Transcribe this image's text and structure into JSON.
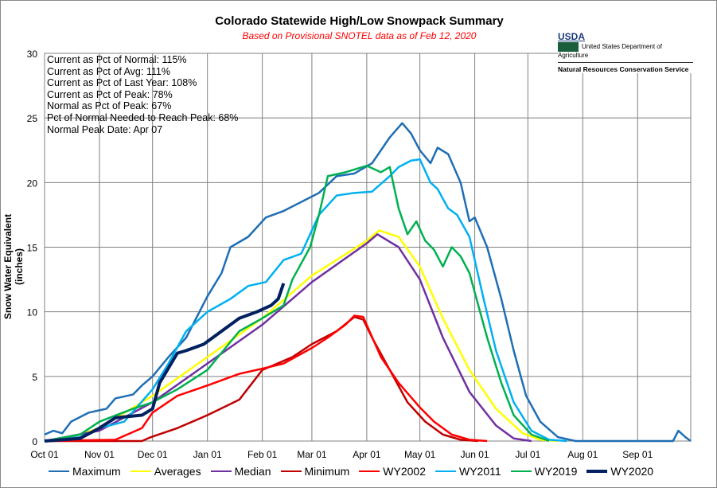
{
  "header": {
    "title": "Colorado Statewide High/Low Snowpack Summary",
    "subtitle": "Based on Provisional SNOTEL data as of Feb 12, 2020",
    "subtitle_color": "#ff0000"
  },
  "logo": {
    "mark": "USDA",
    "dept": "United States Department of Agriculture",
    "agency": "Natural Resources Conservation Service"
  },
  "stats": [
    "Current  as Pct of Normal: 115%",
    "Current  as Pct of Avg: 111%",
    "Current  as Pct of Last Year: 108%",
    "Current  as Pct of Peak: 78%",
    "Normal  as Pct of Peak: 67%",
    "Pct of Normal Needed  to Reach Peak: 68%",
    "Normal  Peak Date: Apr 07"
  ],
  "chart_data": {
    "type": "line",
    "title": "Colorado Statewide High/Low Snowpack Summary",
    "xlabel": "",
    "ylabel": "Snow Water Equivalent (inches)",
    "ylim": [
      0,
      30
    ],
    "yticks": [
      0,
      5,
      10,
      15,
      20,
      25,
      30
    ],
    "xlim_days": [
      0,
      365
    ],
    "xticks": [
      {
        "day": 0,
        "label": "Oct 01"
      },
      {
        "day": 31,
        "label": "Nov 01"
      },
      {
        "day": 61,
        "label": "Dec 01"
      },
      {
        "day": 92,
        "label": "Jan 01"
      },
      {
        "day": 123,
        "label": "Feb 01"
      },
      {
        "day": 151,
        "label": "Mar 01"
      },
      {
        "day": 182,
        "label": "Apr 01"
      },
      {
        "day": 212,
        "label": "May 01"
      },
      {
        "day": 243,
        "label": "Jun 01"
      },
      {
        "day": 273,
        "label": "Jul 01"
      },
      {
        "day": 304,
        "label": "Aug 01"
      },
      {
        "day": 335,
        "label": "Sep 01"
      }
    ],
    "grid": true,
    "legend": "bottom",
    "series": [
      {
        "name": "Maximum",
        "color": "#1f6eb5",
        "width": 2.5,
        "points": [
          [
            0,
            0.5
          ],
          [
            5,
            0.8
          ],
          [
            10,
            0.6
          ],
          [
            15,
            1.5
          ],
          [
            25,
            2.2
          ],
          [
            35,
            2.5
          ],
          [
            40,
            3.3
          ],
          [
            50,
            3.6
          ],
          [
            55,
            4.3
          ],
          [
            61,
            5
          ],
          [
            70,
            6.5
          ],
          [
            80,
            8
          ],
          [
            92,
            11.2
          ],
          [
            100,
            13
          ],
          [
            105,
            15
          ],
          [
            115,
            15.8
          ],
          [
            125,
            17.3
          ],
          [
            135,
            17.8
          ],
          [
            145,
            18.5
          ],
          [
            155,
            19.2
          ],
          [
            165,
            20.5
          ],
          [
            175,
            20.7
          ],
          [
            185,
            21.5
          ],
          [
            195,
            23.5
          ],
          [
            202,
            24.6
          ],
          [
            207,
            23.8
          ],
          [
            212,
            22.5
          ],
          [
            218,
            21.5
          ],
          [
            222,
            22.7
          ],
          [
            228,
            22.2
          ],
          [
            235,
            20
          ],
          [
            240,
            17
          ],
          [
            243,
            17.3
          ],
          [
            250,
            15
          ],
          [
            258,
            11
          ],
          [
            265,
            7
          ],
          [
            272,
            3.5
          ],
          [
            280,
            1.5
          ],
          [
            290,
            0.3
          ],
          [
            300,
            0
          ],
          [
            355,
            0
          ],
          [
            358,
            0.8
          ],
          [
            362,
            0.3
          ],
          [
            365,
            0
          ]
        ]
      },
      {
        "name": "Averages",
        "color": "#ffff00",
        "width": 2.5,
        "points": [
          [
            0,
            0
          ],
          [
            15,
            0.3
          ],
          [
            31,
            1
          ],
          [
            61,
            3.5
          ],
          [
            92,
            6.5
          ],
          [
            123,
            9.5
          ],
          [
            151,
            12.8
          ],
          [
            182,
            15.5
          ],
          [
            189,
            16.3
          ],
          [
            200,
            15.8
          ],
          [
            212,
            13.5
          ],
          [
            225,
            9.5
          ],
          [
            240,
            5.5
          ],
          [
            255,
            2.5
          ],
          [
            270,
            0.6
          ],
          [
            280,
            0.1
          ],
          [
            290,
            0
          ]
        ]
      },
      {
        "name": "Median",
        "color": "#7030a0",
        "width": 2.5,
        "points": [
          [
            0,
            0
          ],
          [
            31,
            0.8
          ],
          [
            61,
            3
          ],
          [
            92,
            6
          ],
          [
            123,
            9
          ],
          [
            151,
            12.3
          ],
          [
            182,
            15.3
          ],
          [
            188,
            16
          ],
          [
            200,
            15
          ],
          [
            212,
            12.5
          ],
          [
            225,
            8
          ],
          [
            240,
            3.8
          ],
          [
            255,
            1.2
          ],
          [
            265,
            0.2
          ],
          [
            275,
            0
          ]
        ]
      },
      {
        "name": "Minimum",
        "color": "#c00000",
        "width": 2.5,
        "points": [
          [
            0,
            0
          ],
          [
            55,
            0
          ],
          [
            60,
            0.3
          ],
          [
            75,
            1
          ],
          [
            92,
            2
          ],
          [
            110,
            3.2
          ],
          [
            123,
            5.5
          ],
          [
            140,
            6.5
          ],
          [
            151,
            7.5
          ],
          [
            165,
            8.5
          ],
          [
            175,
            9.6
          ],
          [
            180,
            9.4
          ],
          [
            185,
            8
          ],
          [
            195,
            5.5
          ],
          [
            205,
            3
          ],
          [
            215,
            1.5
          ],
          [
            225,
            0.5
          ],
          [
            235,
            0.1
          ],
          [
            245,
            0
          ]
        ]
      },
      {
        "name": "WY2002",
        "color": "#ff0000",
        "width": 2.5,
        "points": [
          [
            0,
            0
          ],
          [
            40,
            0.1
          ],
          [
            55,
            1
          ],
          [
            61,
            2.2
          ],
          [
            75,
            3.5
          ],
          [
            92,
            4.3
          ],
          [
            110,
            5.2
          ],
          [
            123,
            5.6
          ],
          [
            135,
            6
          ],
          [
            151,
            7.2
          ],
          [
            160,
            8
          ],
          [
            170,
            9
          ],
          [
            175,
            9.7
          ],
          [
            180,
            9.6
          ],
          [
            190,
            6.5
          ],
          [
            200,
            4.5
          ],
          [
            212,
            2.6
          ],
          [
            220,
            1.5
          ],
          [
            230,
            0.5
          ],
          [
            240,
            0.1
          ],
          [
            250,
            0
          ]
        ]
      },
      {
        "name": "WY2011",
        "color": "#00b0f0",
        "width": 2.5,
        "points": [
          [
            0,
            0
          ],
          [
            20,
            0.3
          ],
          [
            31,
            1
          ],
          [
            45,
            1.5
          ],
          [
            61,
            4
          ],
          [
            70,
            6
          ],
          [
            80,
            8.5
          ],
          [
            92,
            10
          ],
          [
            105,
            11
          ],
          [
            115,
            12
          ],
          [
            125,
            12.3
          ],
          [
            135,
            14
          ],
          [
            145,
            14.5
          ],
          [
            155,
            17.5
          ],
          [
            165,
            19
          ],
          [
            175,
            19.2
          ],
          [
            185,
            19.3
          ],
          [
            195,
            20.5
          ],
          [
            200,
            21.2
          ],
          [
            207,
            21.7
          ],
          [
            212,
            21.8
          ],
          [
            218,
            20
          ],
          [
            222,
            19.5
          ],
          [
            228,
            18
          ],
          [
            233,
            17.5
          ],
          [
            240,
            15.8
          ],
          [
            248,
            11
          ],
          [
            255,
            7
          ],
          [
            265,
            3
          ],
          [
            275,
            0.8
          ],
          [
            285,
            0.1
          ],
          [
            295,
            0
          ]
        ]
      },
      {
        "name": "WY2019",
        "color": "#00b050",
        "width": 2.5,
        "points": [
          [
            0,
            0
          ],
          [
            20,
            0.5
          ],
          [
            31,
            1.5
          ],
          [
            50,
            2.5
          ],
          [
            61,
            3
          ],
          [
            75,
            4
          ],
          [
            92,
            5.5
          ],
          [
            110,
            8.5
          ],
          [
            123,
            9.5
          ],
          [
            135,
            10.5
          ],
          [
            140,
            12.5
          ],
          [
            150,
            15
          ],
          [
            155,
            17.5
          ],
          [
            160,
            20.5
          ],
          [
            170,
            20.8
          ],
          [
            182,
            21.3
          ],
          [
            190,
            20.8
          ],
          [
            195,
            21.2
          ],
          [
            200,
            18
          ],
          [
            205,
            16
          ],
          [
            210,
            17
          ],
          [
            215,
            15.5
          ],
          [
            220,
            14.8
          ],
          [
            225,
            13.5
          ],
          [
            230,
            15
          ],
          [
            235,
            14.3
          ],
          [
            240,
            13
          ],
          [
            250,
            8
          ],
          [
            258,
            4.5
          ],
          [
            265,
            2
          ],
          [
            275,
            0.5
          ],
          [
            285,
            0
          ]
        ]
      },
      {
        "name": "WY2020",
        "color": "#002060",
        "width": 4,
        "points": [
          [
            0,
            0
          ],
          [
            20,
            0.2
          ],
          [
            31,
            1
          ],
          [
            40,
            1.8
          ],
          [
            55,
            2
          ],
          [
            61,
            2.5
          ],
          [
            65,
            4.5
          ],
          [
            75,
            6.8
          ],
          [
            80,
            7
          ],
          [
            90,
            7.5
          ],
          [
            100,
            8.5
          ],
          [
            110,
            9.5
          ],
          [
            120,
            10
          ],
          [
            128,
            10.5
          ],
          [
            132,
            11
          ],
          [
            135,
            12.2
          ]
        ]
      }
    ]
  }
}
